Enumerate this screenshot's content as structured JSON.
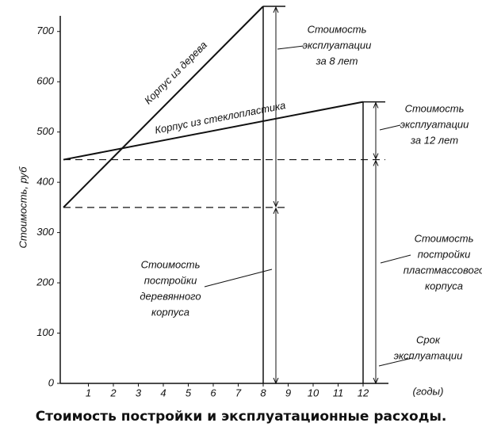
{
  "chart_data": {
    "type": "line",
    "caption": "Стоимость постройки и эксплуатационные расходы.",
    "y_label": "Стоимость, руб",
    "series": [
      {
        "name": "Корпус из дерева",
        "color": "#111111",
        "x": [
          0,
          8
        ],
        "values": [
          350,
          750
        ]
      },
      {
        "name": "Корпус из стеклопластика",
        "color": "#111111",
        "x": [
          0,
          12
        ],
        "values": [
          445,
          560
        ]
      }
    ],
    "annotations": [
      [
        "Стоимость",
        "эксплуатации",
        "за 8 лет"
      ],
      [
        "Стоимость",
        "эксплуатации",
        "за 12 лет"
      ],
      [
        "Стоимость",
        "постройки",
        "деревянного",
        "корпуса"
      ],
      [
        "Стоимость",
        "постройки",
        "пластмассового",
        "корпуса"
      ],
      [
        "Срок",
        "эксплуатации",
        "(годы)"
      ]
    ],
    "xlim": [
      0,
      13
    ],
    "ylim": [
      0,
      750
    ],
    "xticks": [
      1,
      2,
      3,
      4,
      5,
      6,
      7,
      8,
      9,
      10,
      11,
      12
    ],
    "yticks": [
      0,
      100,
      200,
      300,
      400,
      500,
      600,
      700
    ]
  }
}
